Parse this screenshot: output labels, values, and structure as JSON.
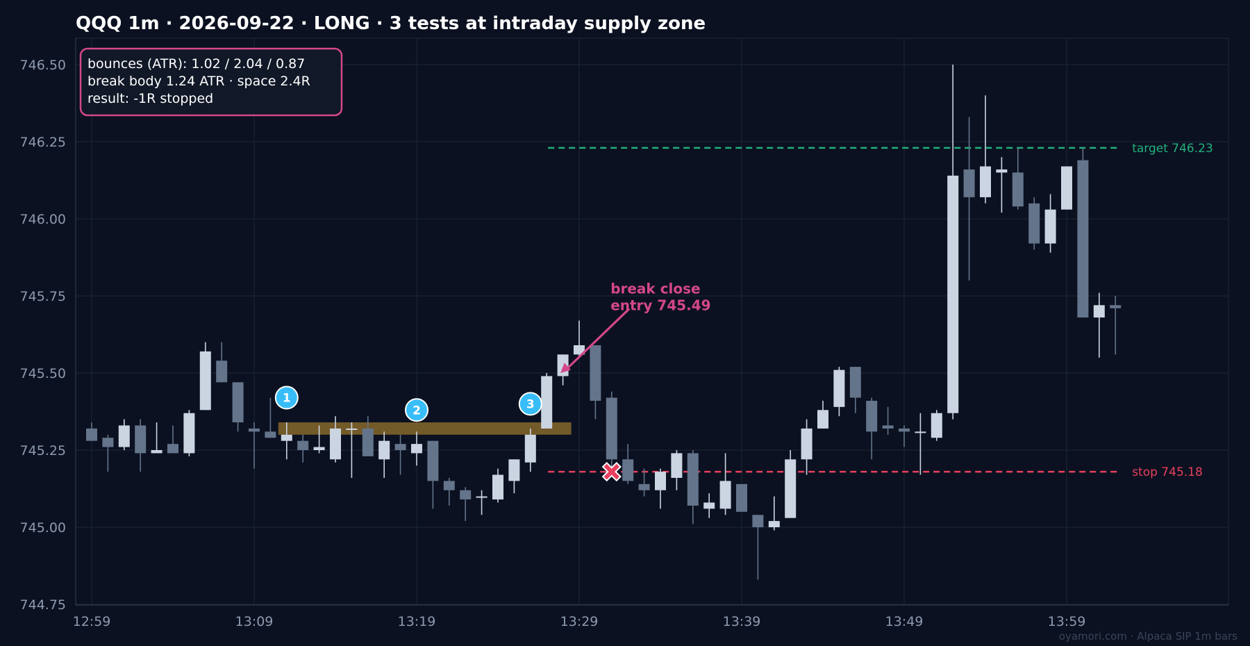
{
  "chart_data": {
    "type": "candlestick",
    "title": "QQQ 1m · 2026-09-22 · LONG · 3 tests at intraday supply zone",
    "ylim": [
      744.75,
      746.6
    ],
    "y_ticks": [
      "746.50",
      "746.25",
      "746.00",
      "745.75",
      "745.50",
      "745.25",
      "745.00",
      "744.75"
    ],
    "x_ticks": [
      "12:59",
      "13:09",
      "13:19",
      "13:29",
      "13:39",
      "13:49",
      "13:59"
    ],
    "grid": true,
    "colors": {
      "background": "#0b1120",
      "bull": "#cbd5e1",
      "bear": "#64748b",
      "zone": "#8a6a2c",
      "target": "#22b07d",
      "stop": "#e8405e",
      "annotation": "#d4478a",
      "marker": "#38bdf8"
    },
    "candles": [
      {
        "t": "12:59",
        "o": 745.32,
        "h": 745.34,
        "l": 745.28,
        "c": 745.28
      },
      {
        "t": "13:00",
        "o": 745.29,
        "h": 745.3,
        "l": 745.18,
        "c": 745.26
      },
      {
        "t": "13:01",
        "o": 745.26,
        "h": 745.35,
        "l": 745.25,
        "c": 745.33
      },
      {
        "t": "13:02",
        "o": 745.33,
        "h": 745.35,
        "l": 745.18,
        "c": 745.24
      },
      {
        "t": "13:03",
        "o": 745.24,
        "h": 745.34,
        "l": 745.24,
        "c": 745.25
      },
      {
        "t": "13:04",
        "o": 745.27,
        "h": 745.33,
        "l": 745.24,
        "c": 745.24
      },
      {
        "t": "13:05",
        "o": 745.24,
        "h": 745.38,
        "l": 745.23,
        "c": 745.37
      },
      {
        "t": "13:06",
        "o": 745.38,
        "h": 745.6,
        "l": 745.38,
        "c": 745.57
      },
      {
        "t": "13:07",
        "o": 745.54,
        "h": 745.6,
        "l": 745.47,
        "c": 745.47
      },
      {
        "t": "13:08",
        "o": 745.47,
        "h": 745.47,
        "l": 745.31,
        "c": 745.34
      },
      {
        "t": "13:09",
        "o": 745.32,
        "h": 745.34,
        "l": 745.19,
        "c": 745.31
      },
      {
        "t": "13:10",
        "o": 745.31,
        "h": 745.42,
        "l": 745.29,
        "c": 745.29
      },
      {
        "t": "13:11",
        "o": 745.28,
        "h": 745.34,
        "l": 745.22,
        "c": 745.3
      },
      {
        "t": "13:12",
        "o": 745.28,
        "h": 745.3,
        "l": 745.21,
        "c": 745.25
      },
      {
        "t": "13:13",
        "o": 745.25,
        "h": 745.33,
        "l": 745.24,
        "c": 745.26
      },
      {
        "t": "13:14",
        "o": 745.22,
        "h": 745.36,
        "l": 745.21,
        "c": 745.32
      },
      {
        "t": "13:15",
        "o": 745.32,
        "h": 745.34,
        "l": 745.16,
        "c": 745.32
      },
      {
        "t": "13:16",
        "o": 745.32,
        "h": 745.36,
        "l": 745.23,
        "c": 745.23
      },
      {
        "t": "13:17",
        "o": 745.22,
        "h": 745.31,
        "l": 745.16,
        "c": 745.28
      },
      {
        "t": "13:18",
        "o": 745.27,
        "h": 745.3,
        "l": 745.17,
        "c": 745.25
      },
      {
        "t": "13:19",
        "o": 745.24,
        "h": 745.31,
        "l": 745.2,
        "c": 745.27
      },
      {
        "t": "13:20",
        "o": 745.28,
        "h": 745.28,
        "l": 745.06,
        "c": 745.15
      },
      {
        "t": "13:21",
        "o": 745.15,
        "h": 745.16,
        "l": 745.07,
        "c": 745.12
      },
      {
        "t": "13:22",
        "o": 745.12,
        "h": 745.13,
        "l": 745.02,
        "c": 745.09
      },
      {
        "t": "13:23",
        "o": 745.1,
        "h": 745.12,
        "l": 745.04,
        "c": 745.1
      },
      {
        "t": "13:24",
        "o": 745.09,
        "h": 745.19,
        "l": 745.08,
        "c": 745.17
      },
      {
        "t": "13:25",
        "o": 745.15,
        "h": 745.22,
        "l": 745.11,
        "c": 745.22
      },
      {
        "t": "13:26",
        "o": 745.21,
        "h": 745.32,
        "l": 745.18,
        "c": 745.3
      },
      {
        "t": "13:27",
        "o": 745.32,
        "h": 745.5,
        "l": 745.32,
        "c": 745.49
      },
      {
        "t": "13:28",
        "o": 745.49,
        "h": 745.56,
        "l": 745.46,
        "c": 745.56
      },
      {
        "t": "13:29",
        "o": 745.56,
        "h": 745.67,
        "l": 745.55,
        "c": 745.59
      },
      {
        "t": "13:30",
        "o": 745.59,
        "h": 745.59,
        "l": 745.35,
        "c": 745.41
      },
      {
        "t": "13:31",
        "o": 745.42,
        "h": 745.44,
        "l": 745.18,
        "c": 745.22
      },
      {
        "t": "13:32",
        "o": 745.22,
        "h": 745.27,
        "l": 745.14,
        "c": 745.15
      },
      {
        "t": "13:33",
        "o": 745.14,
        "h": 745.19,
        "l": 745.1,
        "c": 745.12
      },
      {
        "t": "13:34",
        "o": 745.12,
        "h": 745.19,
        "l": 745.06,
        "c": 745.18
      },
      {
        "t": "13:35",
        "o": 745.16,
        "h": 745.25,
        "l": 745.12,
        "c": 745.24
      },
      {
        "t": "13:36",
        "o": 745.24,
        "h": 745.25,
        "l": 745.01,
        "c": 745.07
      },
      {
        "t": "13:37",
        "o": 745.06,
        "h": 745.11,
        "l": 745.03,
        "c": 745.08
      },
      {
        "t": "13:38",
        "o": 745.06,
        "h": 745.24,
        "l": 745.04,
        "c": 745.15
      },
      {
        "t": "13:39",
        "o": 745.14,
        "h": 745.14,
        "l": 745.05,
        "c": 745.05
      },
      {
        "t": "13:40",
        "o": 745.04,
        "h": 745.04,
        "l": 744.83,
        "c": 745.0
      },
      {
        "t": "13:41",
        "o": 745.0,
        "h": 745.1,
        "l": 744.99,
        "c": 745.02
      },
      {
        "t": "13:42",
        "o": 745.03,
        "h": 745.25,
        "l": 745.03,
        "c": 745.22
      },
      {
        "t": "13:43",
        "o": 745.22,
        "h": 745.35,
        "l": 745.17,
        "c": 745.32
      },
      {
        "t": "13:44",
        "o": 745.32,
        "h": 745.41,
        "l": 745.32,
        "c": 745.38
      },
      {
        "t": "13:45",
        "o": 745.39,
        "h": 745.52,
        "l": 745.36,
        "c": 745.51
      },
      {
        "t": "13:46",
        "o": 745.52,
        "h": 745.52,
        "l": 745.37,
        "c": 745.42
      },
      {
        "t": "13:47",
        "o": 745.41,
        "h": 745.42,
        "l": 745.22,
        "c": 745.31
      },
      {
        "t": "13:48",
        "o": 745.33,
        "h": 745.39,
        "l": 745.3,
        "c": 745.32
      },
      {
        "t": "13:49",
        "o": 745.32,
        "h": 745.33,
        "l": 745.26,
        "c": 745.31
      },
      {
        "t": "13:50",
        "o": 745.31,
        "h": 745.37,
        "l": 745.17,
        "c": 745.31
      },
      {
        "t": "13:51",
        "o": 745.29,
        "h": 745.38,
        "l": 745.28,
        "c": 745.37
      },
      {
        "t": "13:52",
        "o": 745.37,
        "h": 746.5,
        "l": 745.35,
        "c": 746.14
      },
      {
        "t": "13:53",
        "o": 746.16,
        "h": 746.33,
        "l": 745.8,
        "c": 746.07
      },
      {
        "t": "13:54",
        "o": 746.07,
        "h": 746.4,
        "l": 746.05,
        "c": 746.17
      },
      {
        "t": "13:55",
        "o": 746.15,
        "h": 746.2,
        "l": 746.02,
        "c": 746.16
      },
      {
        "t": "13:56",
        "o": 746.15,
        "h": 746.23,
        "l": 746.03,
        "c": 746.04
      },
      {
        "t": "13:57",
        "o": 746.05,
        "h": 746.07,
        "l": 745.9,
        "c": 745.92
      },
      {
        "t": "13:58",
        "o": 745.92,
        "h": 746.08,
        "l": 745.89,
        "c": 746.03
      },
      {
        "t": "13:59",
        "o": 746.03,
        "h": 746.17,
        "l": 746.03,
        "c": 746.17
      },
      {
        "t": "14:00",
        "o": 746.19,
        "h": 746.23,
        "l": 745.68,
        "c": 745.68
      },
      {
        "t": "14:01",
        "o": 745.68,
        "h": 745.76,
        "l": 745.55,
        "c": 745.72
      },
      {
        "t": "14:02",
        "o": 745.72,
        "h": 745.75,
        "l": 745.56,
        "c": 745.71
      }
    ],
    "zone": {
      "low": 745.3,
      "high": 745.34,
      "from": "13:11",
      "to": "13:28"
    },
    "tests": [
      {
        "label": "1",
        "t": "13:11",
        "y": 745.42
      },
      {
        "label": "2",
        "t": "13:19",
        "y": 745.38
      },
      {
        "label": "3",
        "t": "13:26",
        "y": 745.4
      }
    ],
    "levels": [
      {
        "name": "target",
        "label": "target 746.23",
        "value": 746.23,
        "from": "13:27",
        "to": "14:02"
      },
      {
        "name": "stop",
        "label": "stop 745.18",
        "value": 745.18,
        "from": "13:27",
        "to": "14:02"
      }
    ],
    "stop_hit": {
      "t": "13:31",
      "y": 745.18
    },
    "annotation": {
      "lines": [
        "break close",
        "entry 745.49"
      ],
      "t_text": "13:32",
      "y_text": 745.74,
      "t_arrow": "13:27",
      "y_arrow": 745.5
    },
    "info_box": [
      "bounces (ATR): 1.02 / 2.04 / 0.87",
      "break body 1.24 ATR · space 2.4R",
      "result: -1R stopped"
    ],
    "watermark": "oyamori.com · Alpaca SIP 1m bars"
  }
}
